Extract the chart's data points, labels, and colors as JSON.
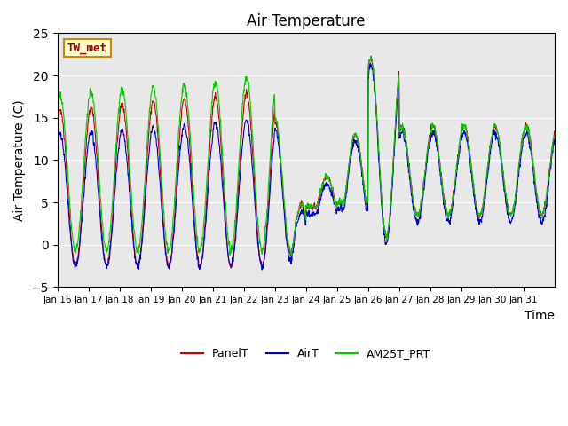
{
  "title": "Air Temperature",
  "ylabel": "Air Temperature (C)",
  "xlabel": "Time",
  "ylim": [
    -5,
    25
  ],
  "xtick_labels": [
    "Jan 16",
    "Jan 17",
    "Jan 18",
    "Jan 19",
    "Jan 20",
    "Jan 21",
    "Jan 22",
    "Jan 23",
    "Jan 24",
    "Jan 25",
    "Jan 26",
    "Jan 27",
    "Jan 28",
    "Jan 29",
    "Jan 30",
    "Jan 31"
  ],
  "panel_color": "#cc0000",
  "air_color": "#0000cc",
  "am25_color": "#00cc00",
  "bg_color": "#e8e8e8",
  "annotation_text": "TW_met",
  "annotation_bg": "#ffffcc",
  "annotation_border": "#cc8800",
  "legend_labels": [
    "PanelT",
    "AirT",
    "AM25T_PRT"
  ],
  "title_fontsize": 12,
  "axis_fontsize": 10,
  "yticks": [
    -5,
    0,
    5,
    10,
    15,
    20,
    25
  ]
}
